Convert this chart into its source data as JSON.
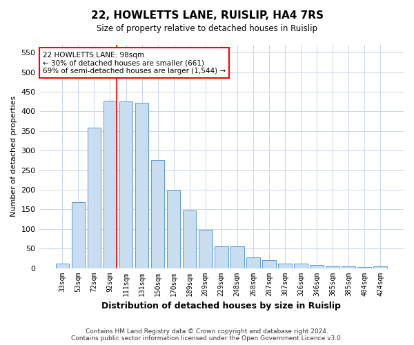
{
  "title": "22, HOWLETTS LANE, RUISLIP, HA4 7RS",
  "subtitle": "Size of property relative to detached houses in Ruislip",
  "xlabel": "Distribution of detached houses by size in Ruislip",
  "ylabel": "Number of detached properties",
  "footer1": "Contains HM Land Registry data © Crown copyright and database right 2024.",
  "footer2": "Contains public sector information licensed under the Open Government Licence v3.0.",
  "categories": [
    "33sqm",
    "53sqm",
    "72sqm",
    "92sqm",
    "111sqm",
    "131sqm",
    "150sqm",
    "170sqm",
    "189sqm",
    "209sqm",
    "229sqm",
    "248sqm",
    "268sqm",
    "287sqm",
    "307sqm",
    "326sqm",
    "346sqm",
    "365sqm",
    "385sqm",
    "404sqm",
    "424sqm"
  ],
  "values": [
    12,
    168,
    358,
    428,
    425,
    422,
    275,
    198,
    148,
    97,
    55,
    55,
    27,
    20,
    12,
    12,
    8,
    5,
    4,
    2,
    4
  ],
  "bar_color": "#c9ddf0",
  "bar_edge_color": "#5b9bd5",
  "annotation_text1": "22 HOWLETTS LANE: 98sqm",
  "annotation_text2": "← 30% of detached houses are smaller (661)",
  "annotation_text3": "69% of semi-detached houses are larger (1,544) →",
  "ylim": [
    0,
    570
  ],
  "yticks": [
    0,
    50,
    100,
    150,
    200,
    250,
    300,
    350,
    400,
    450,
    500,
    550
  ],
  "background_color": "#ffffff",
  "grid_color": "#c8d4e8"
}
